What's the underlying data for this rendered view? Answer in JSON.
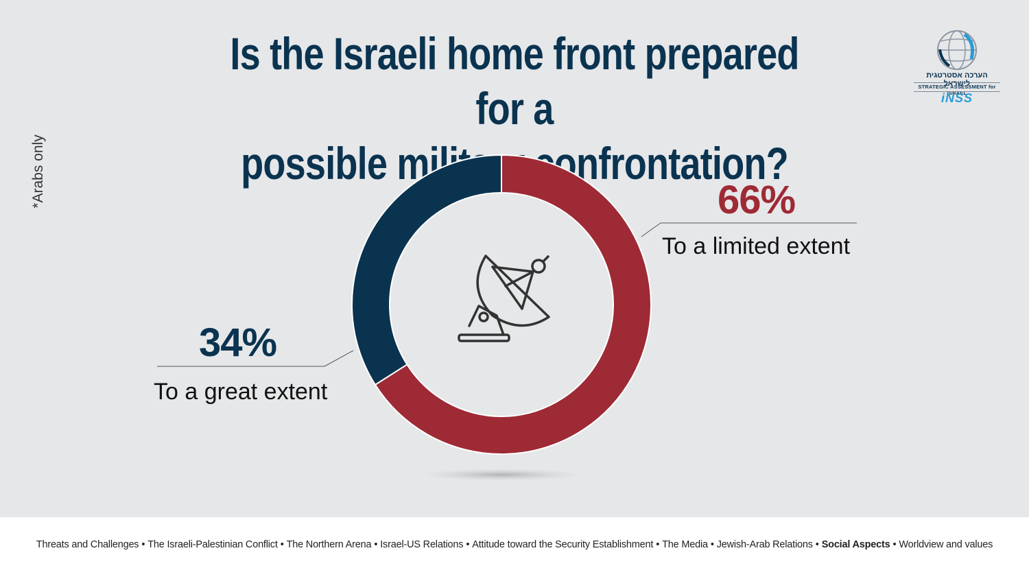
{
  "title": {
    "line1": "Is the Israeli home front prepared for a",
    "line2": "possible military confrontation?"
  },
  "side_note": "*Arabs only",
  "logo": {
    "hebrew": "הערכה אסטרטגית לישראל",
    "english": "STRATEGIC ASSESSMENT for ISRAEL",
    "brand": "iNSS"
  },
  "center_icon": "satellite-dish-icon",
  "colors": {
    "limited": "#9e2a35",
    "great": "#0a3350",
    "background": "#e6e7e9"
  },
  "chart_data": {
    "type": "pie",
    "style": "donut",
    "categories": [
      "To a limited extent",
      "To a great extent"
    ],
    "values": [
      66,
      34
    ],
    "value_labels": [
      "66%",
      "34%"
    ],
    "start": "12 o'clock, clockwise"
  },
  "footer": {
    "items": [
      {
        "label": "Threats and Challenges",
        "active": false
      },
      {
        "label": "The Israeli-Palestinian Conflict",
        "active": false
      },
      {
        "label": "The Northern  Arena",
        "active": false
      },
      {
        "label": "Israel-US Relations",
        "active": false
      },
      {
        "label": "Attitude toward the Security Establishment",
        "active": false
      },
      {
        "label": "The Media",
        "active": false
      },
      {
        "label": "Jewish-Arab Relations",
        "active": false
      },
      {
        "label": "Social Aspects",
        "active": true
      },
      {
        "label": "Worldview and values",
        "active": false
      }
    ],
    "separator": "•"
  }
}
